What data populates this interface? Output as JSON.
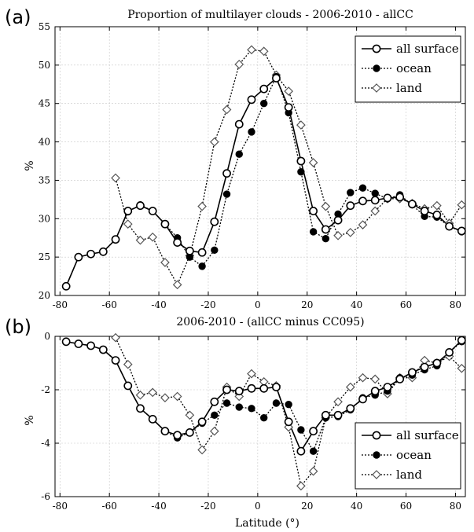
{
  "chart_data": [
    {
      "panel_label": "(a)",
      "type": "line",
      "title": "Proportion of multilayer clouds -   2006-2010 - allCC",
      "xlabel": "",
      "ylabel": "%",
      "xlim": [
        -82,
        84
      ],
      "ylim": [
        20,
        55
      ],
      "xticks": [
        -80,
        -60,
        -40,
        -20,
        0,
        20,
        40,
        60,
        80
      ],
      "yticks": [
        20,
        25,
        30,
        35,
        40,
        45,
        50,
        55
      ],
      "grid": true,
      "legend_position": "top-right",
      "series": [
        {
          "name": "all surface",
          "style": "solid",
          "marker": "open-circle",
          "points": [
            [
              -77.5,
              21.2
            ],
            [
              -72.5,
              25.0
            ],
            [
              -67.5,
              25.4
            ],
            [
              -62.5,
              25.7
            ],
            [
              -57.5,
              27.3
            ],
            [
              -52.5,
              31.0
            ],
            [
              -47.5,
              31.7
            ],
            [
              -42.5,
              31.0
            ],
            [
              -37.5,
              29.3
            ],
            [
              -32.5,
              26.9
            ],
            [
              -27.5,
              25.8
            ],
            [
              -22.5,
              25.6
            ],
            [
              -17.5,
              29.6
            ],
            [
              -12.5,
              35.9
            ],
            [
              -7.5,
              42.3
            ],
            [
              -2.5,
              45.5
            ],
            [
              2.5,
              46.9
            ],
            [
              7.5,
              48.3
            ],
            [
              12.5,
              44.5
            ],
            [
              17.5,
              37.5
            ],
            [
              22.5,
              31.0
            ],
            [
              27.5,
              28.6
            ],
            [
              32.5,
              29.8
            ],
            [
              37.5,
              31.7
            ],
            [
              42.5,
              32.3
            ],
            [
              47.5,
              32.4
            ],
            [
              52.5,
              32.7
            ],
            [
              57.5,
              32.8
            ],
            [
              62.5,
              31.9
            ],
            [
              67.5,
              31.0
            ],
            [
              72.5,
              30.5
            ],
            [
              77.5,
              29.0
            ],
            [
              82.5,
              28.4
            ]
          ]
        },
        {
          "name": "ocean",
          "style": "dotted",
          "marker": "filled-circle",
          "points": [
            [
              -77.5,
              21.2
            ],
            [
              -72.5,
              25.0
            ],
            [
              -67.5,
              25.4
            ],
            [
              -62.5,
              25.7
            ],
            [
              -57.5,
              27.3
            ],
            [
              -52.5,
              30.9
            ],
            [
              -47.5,
              31.8
            ],
            [
              -42.5,
              31.0
            ],
            [
              -37.5,
              29.3
            ],
            [
              -32.5,
              27.5
            ],
            [
              -27.5,
              25.0
            ],
            [
              -22.5,
              23.8
            ],
            [
              -17.5,
              25.9
            ],
            [
              -12.5,
              33.2
            ],
            [
              -7.5,
              38.4
            ],
            [
              -2.5,
              41.3
            ],
            [
              2.5,
              45.0
            ],
            [
              7.5,
              48.5
            ],
            [
              12.5,
              43.8
            ],
            [
              17.5,
              36.1
            ],
            [
              22.5,
              28.3
            ],
            [
              27.5,
              27.4
            ],
            [
              32.5,
              30.6
            ],
            [
              37.5,
              33.4
            ],
            [
              42.5,
              34.0
            ],
            [
              47.5,
              33.3
            ],
            [
              52.5,
              32.6
            ],
            [
              57.5,
              33.1
            ],
            [
              62.5,
              31.8
            ],
            [
              67.5,
              30.3
            ],
            [
              72.5,
              30.2
            ],
            [
              77.5,
              29.0
            ],
            [
              82.5,
              28.3
            ]
          ]
        },
        {
          "name": "land",
          "style": "dotted",
          "marker": "open-diamond",
          "points": [
            [
              -57.5,
              35.3
            ],
            [
              -52.5,
              29.3
            ],
            [
              -47.5,
              27.2
            ],
            [
              -42.5,
              27.6
            ],
            [
              -37.5,
              24.3
            ],
            [
              -32.5,
              21.4
            ],
            [
              -27.5,
              25.2
            ],
            [
              -22.5,
              31.6
            ],
            [
              -17.5,
              40.0
            ],
            [
              -12.5,
              44.2
            ],
            [
              -7.5,
              50.1
            ],
            [
              -2.5,
              52.0
            ],
            [
              2.5,
              51.8
            ],
            [
              7.5,
              48.7
            ],
            [
              12.5,
              46.6
            ],
            [
              17.5,
              42.2
            ],
            [
              22.5,
              37.3
            ],
            [
              27.5,
              31.6
            ],
            [
              32.5,
              27.8
            ],
            [
              37.5,
              28.2
            ],
            [
              42.5,
              29.2
            ],
            [
              47.5,
              31.0
            ],
            [
              52.5,
              32.6
            ],
            [
              57.5,
              32.6
            ],
            [
              62.5,
              32.0
            ],
            [
              67.5,
              31.3
            ],
            [
              72.5,
              31.7
            ],
            [
              77.5,
              29.4
            ],
            [
              82.5,
              31.8
            ]
          ]
        }
      ]
    },
    {
      "panel_label": "(b)",
      "type": "line",
      "title": "2006-2010 - (allCC minus CC095)",
      "xlabel": "Latitude (°)",
      "ylabel": "%",
      "xlim": [
        -82,
        84
      ],
      "ylim": [
        -6,
        0
      ],
      "xticks": [
        -80,
        -60,
        -40,
        -20,
        0,
        20,
        40,
        60,
        80
      ],
      "yticks": [
        -6,
        -4,
        -2,
        0
      ],
      "grid": true,
      "legend_position": "bottom-right",
      "series": [
        {
          "name": "all surface",
          "style": "solid",
          "marker": "open-circle",
          "points": [
            [
              -77.5,
              -0.2
            ],
            [
              -72.5,
              -0.28
            ],
            [
              -67.5,
              -0.35
            ],
            [
              -62.5,
              -0.5
            ],
            [
              -57.5,
              -0.9
            ],
            [
              -52.5,
              -1.85
            ],
            [
              -47.5,
              -2.7
            ],
            [
              -42.5,
              -3.1
            ],
            [
              -37.5,
              -3.55
            ],
            [
              -32.5,
              -3.7
            ],
            [
              -27.5,
              -3.6
            ],
            [
              -22.5,
              -3.2
            ],
            [
              -17.5,
              -2.45
            ],
            [
              -12.5,
              -2.0
            ],
            [
              -7.5,
              -2.05
            ],
            [
              -2.5,
              -1.95
            ],
            [
              2.5,
              -1.95
            ],
            [
              7.5,
              -1.9
            ],
            [
              12.5,
              -3.2
            ],
            [
              17.5,
              -4.3
            ],
            [
              22.5,
              -3.55
            ],
            [
              27.5,
              -2.95
            ],
            [
              32.5,
              -2.95
            ],
            [
              37.5,
              -2.7
            ],
            [
              42.5,
              -2.35
            ],
            [
              47.5,
              -2.05
            ],
            [
              52.5,
              -1.9
            ],
            [
              57.5,
              -1.6
            ],
            [
              62.5,
              -1.35
            ],
            [
              67.5,
              -1.15
            ],
            [
              72.5,
              -1.0
            ],
            [
              77.5,
              -0.6
            ],
            [
              82.5,
              -0.15
            ]
          ]
        },
        {
          "name": "ocean",
          "style": "dotted",
          "marker": "filled-circle",
          "points": [
            [
              -77.5,
              -0.2
            ],
            [
              -72.5,
              -0.28
            ],
            [
              -67.5,
              -0.35
            ],
            [
              -62.5,
              -0.5
            ],
            [
              -57.5,
              -0.9
            ],
            [
              -52.5,
              -1.85
            ],
            [
              -47.5,
              -2.7
            ],
            [
              -42.5,
              -3.1
            ],
            [
              -37.5,
              -3.55
            ],
            [
              -32.5,
              -3.8
            ],
            [
              -27.5,
              -3.6
            ],
            [
              -22.5,
              -3.25
            ],
            [
              -17.5,
              -2.95
            ],
            [
              -12.5,
              -2.5
            ],
            [
              -7.5,
              -2.65
            ],
            [
              -2.5,
              -2.7
            ],
            [
              2.5,
              -3.05
            ],
            [
              7.5,
              -2.5
            ],
            [
              12.5,
              -2.55
            ],
            [
              17.5,
              -3.5
            ],
            [
              22.5,
              -4.3
            ],
            [
              27.5,
              -3.05
            ],
            [
              32.5,
              -3.0
            ],
            [
              37.5,
              -2.75
            ],
            [
              42.5,
              -2.3
            ],
            [
              47.5,
              -2.2
            ],
            [
              52.5,
              -2.05
            ],
            [
              57.5,
              -1.55
            ],
            [
              62.5,
              -1.45
            ],
            [
              67.5,
              -1.25
            ],
            [
              72.5,
              -1.1
            ],
            [
              77.5,
              -0.6
            ],
            [
              82.5,
              -0.2
            ]
          ]
        },
        {
          "name": "land",
          "style": "dotted",
          "marker": "open-diamond",
          "points": [
            [
              -57.5,
              -0.05
            ],
            [
              -52.5,
              -1.05
            ],
            [
              -47.5,
              -2.2
            ],
            [
              -42.5,
              -2.1
            ],
            [
              -37.5,
              -2.3
            ],
            [
              -32.5,
              -2.25
            ],
            [
              -27.5,
              -2.95
            ],
            [
              -22.5,
              -4.25
            ],
            [
              -17.5,
              -3.55
            ],
            [
              -12.5,
              -1.9
            ],
            [
              -7.5,
              -2.25
            ],
            [
              -2.5,
              -1.4
            ],
            [
              2.5,
              -1.7
            ],
            [
              7.5,
              -1.85
            ],
            [
              12.5,
              -3.4
            ],
            [
              17.5,
              -5.6
            ],
            [
              22.5,
              -5.05
            ],
            [
              27.5,
              -3.05
            ],
            [
              32.5,
              -2.45
            ],
            [
              37.5,
              -1.9
            ],
            [
              42.5,
              -1.55
            ],
            [
              47.5,
              -1.6
            ],
            [
              52.5,
              -2.15
            ],
            [
              57.5,
              -1.55
            ],
            [
              62.5,
              -1.55
            ],
            [
              67.5,
              -0.9
            ],
            [
              72.5,
              -1.0
            ],
            [
              77.5,
              -0.75
            ],
            [
              82.5,
              -1.2
            ]
          ]
        }
      ]
    }
  ]
}
